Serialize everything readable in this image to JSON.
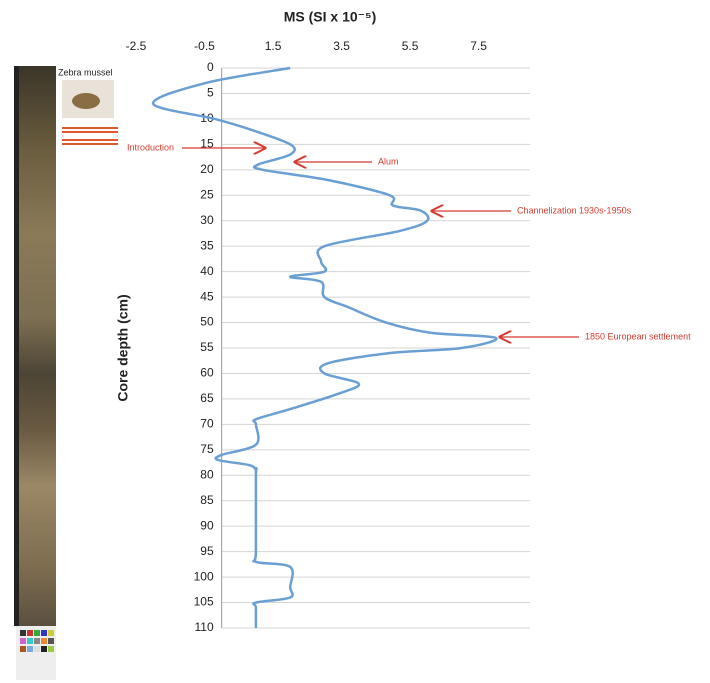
{
  "chart_data": {
    "type": "line",
    "title": "MS (SI x 10⁻⁵)",
    "y_label": "Core depth (cm)",
    "image_label": "Zebra mussel",
    "xlim": [
      -2.5,
      9
    ],
    "xticks": [
      -2.5,
      -0.5,
      1.5,
      3.5,
      5.5,
      7.5
    ],
    "ylim": [
      0,
      110
    ],
    "yticks": [
      0,
      5,
      10,
      15,
      20,
      25,
      30,
      35,
      40,
      45,
      50,
      55,
      60,
      65,
      70,
      75,
      80,
      85,
      90,
      95,
      100,
      105,
      110
    ],
    "y_inverted": true,
    "grid": true,
    "y": [
      0,
      3,
      7,
      10,
      12,
      15,
      17,
      19,
      20,
      22,
      25,
      27,
      28,
      30,
      32,
      35,
      38,
      40,
      41,
      42,
      45,
      47,
      50,
      52,
      53,
      55,
      56,
      58,
      60,
      62,
      64,
      67,
      69,
      70,
      74,
      76,
      77,
      78,
      79,
      80,
      95,
      97,
      98,
      102,
      104,
      105,
      106,
      110
    ],
    "series": [
      {
        "name": "MS",
        "color": "#6a9fd4",
        "values": [
          2.0,
          -0.5,
          -2.0,
          -0.2,
          0.8,
          2.0,
          2.0,
          1.05,
          1.2,
          3.1,
          4.9,
          5.0,
          5.8,
          6.0,
          5.2,
          3.0,
          2.9,
          3.0,
          2.0,
          2.9,
          3.0,
          3.7,
          4.8,
          6.1,
          8.0,
          7.0,
          4.9,
          3.1,
          3.0,
          4.0,
          3.4,
          2.0,
          1.0,
          1.0,
          1.0,
          0.0,
          -0.1,
          0.8,
          1.0,
          1.0,
          1.0,
          1.0,
          2.0,
          2.0,
          2.0,
          1.0,
          1.0,
          1.0
        ]
      }
    ],
    "annotations": [
      {
        "text": "Introduction"
      },
      {
        "text": "Alum"
      },
      {
        "text": "Channelization 1930s-1950s"
      },
      {
        "text": "1850 European settlement"
      }
    ]
  }
}
